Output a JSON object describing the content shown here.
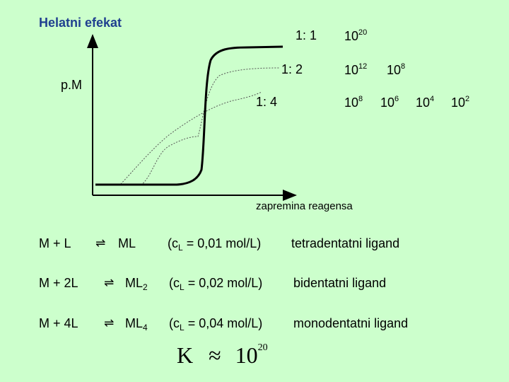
{
  "title": "Helatni efekat",
  "chart": {
    "ylabel": "p.M",
    "xlabel": "zapremina reagensa",
    "ratio_labels": [
      "1: 1",
      "1: 2",
      "1: 4"
    ],
    "constants": {
      "r1": [
        {
          "base": "10",
          "exp": "20"
        }
      ],
      "r2": [
        {
          "base": "10",
          "exp": "12"
        },
        {
          "base": "10",
          "exp": "8"
        }
      ],
      "r3": [
        {
          "base": "10",
          "exp": "8"
        },
        {
          "base": "10",
          "exp": "6"
        },
        {
          "base": "10",
          "exp": "4"
        },
        {
          "base": "10",
          "exp": "2"
        }
      ]
    }
  },
  "equations": [
    {
      "lhs": "M + L",
      "arrow": "⇌",
      "product": "ML",
      "product_sub": "",
      "conc_open": "(c",
      "conc_sub": "L",
      "conc_close": " = 0,01 mol/L)",
      "ligand": "tetradentatni ligand"
    },
    {
      "lhs": "M + 2L",
      "arrow": "⇌",
      "product": "ML",
      "product_sub": "2",
      "conc_open": "(c",
      "conc_sub": "L",
      "conc_close": " = 0,02 mol/L)",
      "ligand": "bidentatni ligand"
    },
    {
      "lhs": "M + 4L",
      "arrow": "⇌",
      "product": "ML",
      "product_sub": "4",
      "conc_open": "(c",
      "conc_sub": "L",
      "conc_close": " = 0,04 mol/L)",
      "ligand": "monodentatni ligand"
    }
  ],
  "formula": {
    "k": "K",
    "approx": "≈",
    "base": "10",
    "exp": "20"
  }
}
